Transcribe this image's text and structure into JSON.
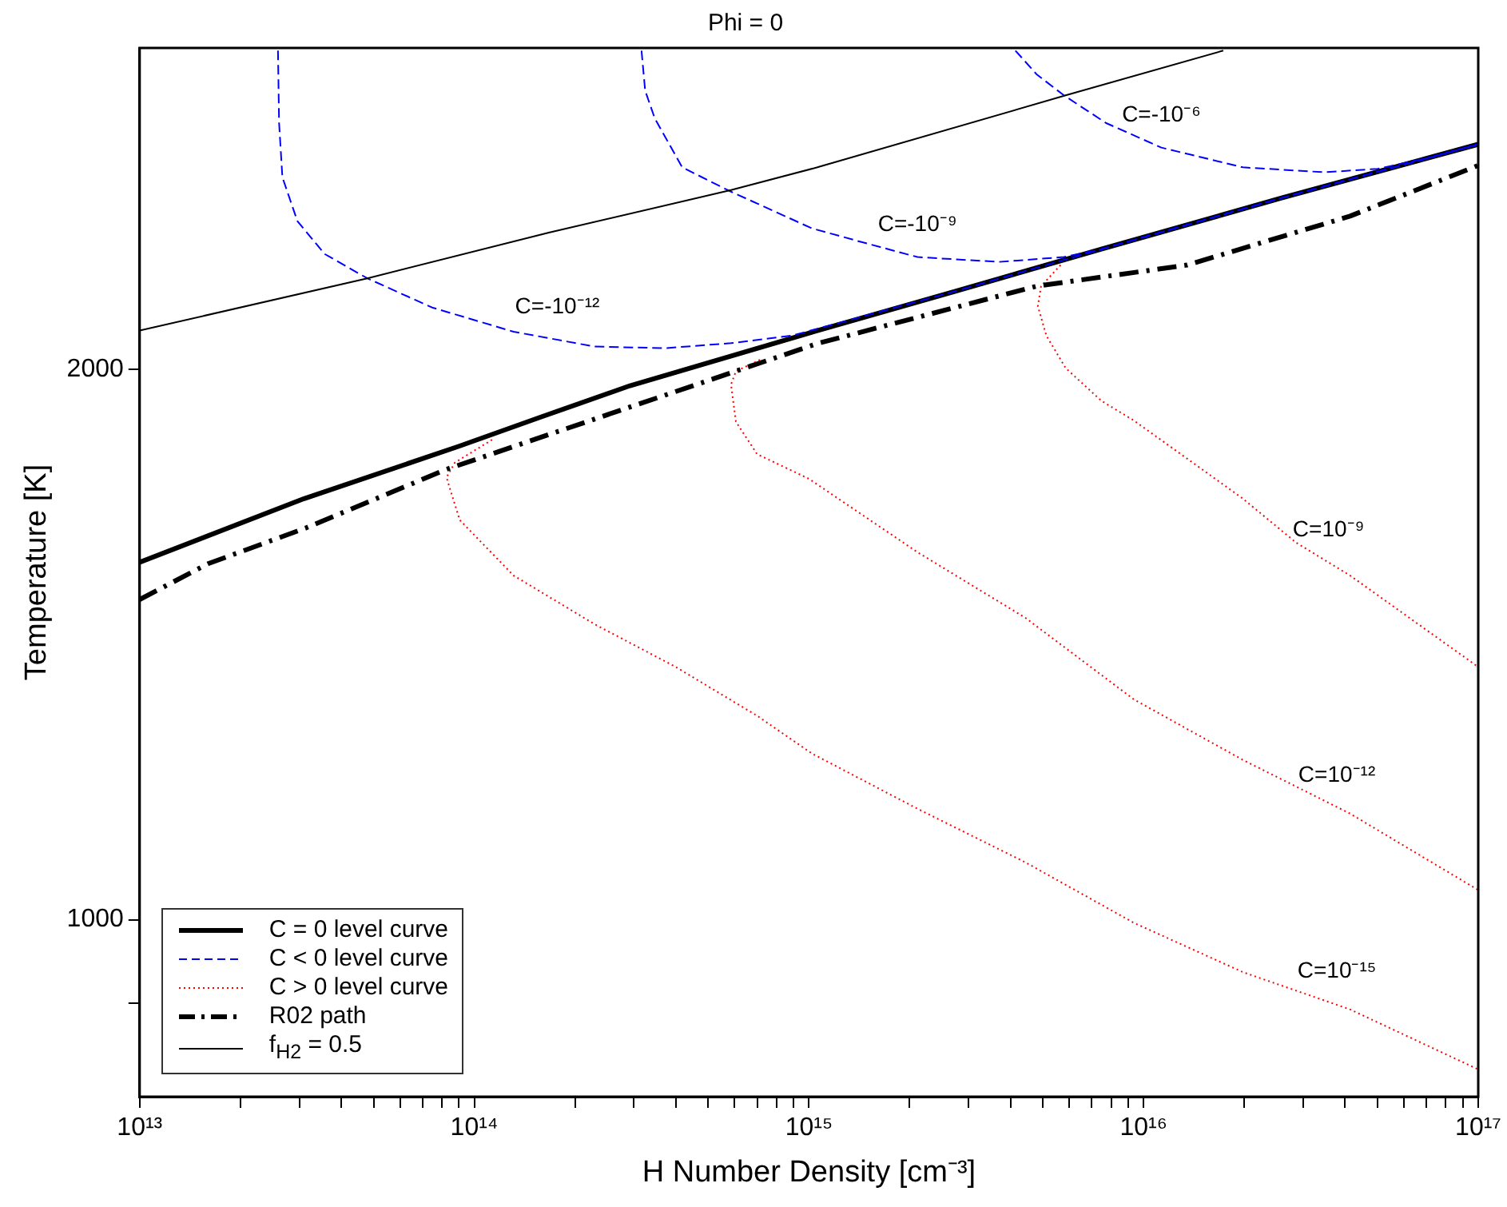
{
  "chart_data": {
    "type": "line",
    "title": "Phi = 0",
    "xlabel": "H Number Density [cm⁻³]",
    "ylabel": "Temperature [K]",
    "log": "xy",
    "grid": false,
    "legend": "bottom left",
    "marker": "none",
    "xlim": [
      10000000000000.0,
      1e+17
    ],
    "ylim": [
      800,
      3000
    ],
    "xticks": [
      {
        "value": 10000000000000.0,
        "label": "10¹³"
      },
      {
        "value": 20000000000000.0,
        "label": null
      },
      {
        "value": 30000000000000.0,
        "label": null
      },
      {
        "value": 40000000000000.0,
        "label": null
      },
      {
        "value": 50000000000000.0,
        "label": null
      },
      {
        "value": 60000000000000.0,
        "label": null
      },
      {
        "value": 70000000000000.0,
        "label": null
      },
      {
        "value": 80000000000000.0,
        "label": null
      },
      {
        "value": 90000000000000.0,
        "label": null
      },
      {
        "value": 100000000000000.0,
        "label": "10¹⁴"
      },
      {
        "value": 200000000000000.0,
        "label": null
      },
      {
        "value": 300000000000000.0,
        "label": null
      },
      {
        "value": 400000000000000.0,
        "label": null
      },
      {
        "value": 500000000000000.0,
        "label": null
      },
      {
        "value": 600000000000000.0,
        "label": null
      },
      {
        "value": 700000000000000.0,
        "label": null
      },
      {
        "value": 800000000000000.0,
        "label": null
      },
      {
        "value": 900000000000000.0,
        "label": null
      },
      {
        "value": 1000000000000000.0,
        "label": "10¹⁵"
      },
      {
        "value": 2000000000000000.0,
        "label": null
      },
      {
        "value": 3000000000000000.0,
        "label": null
      },
      {
        "value": 4000000000000000.0,
        "label": null
      },
      {
        "value": 5000000000000000.0,
        "label": null
      },
      {
        "value": 6000000000000000.0,
        "label": null
      },
      {
        "value": 7000000000000000.0,
        "label": null
      },
      {
        "value": 8000000000000000.0,
        "label": null
      },
      {
        "value": 9000000000000000.0,
        "label": null
      },
      {
        "value": 1e+16,
        "label": "10¹⁶"
      },
      {
        "value": 2e+16,
        "label": null
      },
      {
        "value": 3e+16,
        "label": null
      },
      {
        "value": 4e+16,
        "label": null
      },
      {
        "value": 5e+16,
        "label": null
      },
      {
        "value": 6e+16,
        "label": null
      },
      {
        "value": 7e+16,
        "label": null
      },
      {
        "value": 8e+16,
        "label": null
      },
      {
        "value": 9e+16,
        "label": null
      },
      {
        "value": 1e+17,
        "label": "10¹⁷"
      }
    ],
    "yticks": [
      {
        "value": 900,
        "label": null
      },
      1000,
      2000
    ],
    "series": [
      {
        "name": "C = 0 level curve",
        "color": "#000000",
        "line_style": "solid",
        "x": [
          10000000000000.0,
          31000000000000.0,
          90000000000000.0,
          158000000000000.0,
          292000000000000.0,
          1060000000000000.0,
          2740000000000000.0,
          7480000000000000.0,
          2.56e+16,
          1e+17
        ],
        "values": [
          1569,
          1700,
          1816,
          1884,
          1960,
          2101,
          2208,
          2328,
          2482,
          2657
        ]
      },
      {
        "name": "C < 0 level curve",
        "color": "#0000ff",
        "line_style": "dashed",
        "x": [
          25900000000000.0,
          26100000000000.0,
          26700000000000.0,
          29600000000000.0,
          35700000000000.0,
          47900000000000.0,
          74800000000000.0,
          131000000000000.0,
          229000000000000.0,
          374000000000000.0,
          585000000000000.0,
          893000000000000.0,
          2740000000000000.0,
          7480000000000000.0,
          2.56e+16,
          1e+17
        ],
        "values": [
          2990,
          2729,
          2549,
          2412,
          2314,
          2244,
          2163,
          2098,
          2059,
          2055,
          2068,
          2088,
          2208,
          2328,
          2482,
          2657
        ]
      },
      {
        "color": "#0000ff",
        "line_style": "dashed",
        "x": [
          316000000000000.0,
          324000000000000.0,
          346000000000000.0,
          418000000000000.0,
          585000000000000.0,
          1020000000000000.0,
          1450000000000000.0,
          2110000000000000.0,
          3700000000000000.0,
          5780000000000000.0,
          7480000000000000.0,
          2.56e+16,
          1e+17
        ],
        "values": [
          2990,
          2843,
          2746,
          2581,
          2503,
          2390,
          2348,
          2305,
          2291,
          2305,
          2328,
          2482,
          2657
        ]
      },
      {
        "color": "#0000ff",
        "line_style": "dashed",
        "x": [
          4140000000000000.0,
          4790000000000000.0,
          5780000000000000.0,
          7730000000000000.0,
          1.13e+16,
          1.98e+16,
          3.46e+16,
          5e+16,
          7.23e+16,
          1e+17
        ],
        "values": [
          2990,
          2902,
          2826,
          2729,
          2646,
          2581,
          2565,
          2576,
          2614,
          2657
        ]
      },
      {
        "name": "C > 0 level curve",
        "color": "#ff0000",
        "line_style": "dotted",
        "x": [
          113000000000000.0,
          87500000000000.0,
          82600000000000.0,
          90400000000000.0,
          131000000000000.0,
          229000000000000.0,
          400000000000000.0,
          700000000000000.0,
          1020000000000000.0,
          2110000000000000.0,
          4430000000000000.0,
          9350000000000000.0,
          1.98e+16,
          4.14e+16,
          1e+17
        ],
        "values": [
          1831,
          1779,
          1746,
          1655,
          1543,
          1451,
          1375,
          1293,
          1233,
          1150,
          1075,
          996,
          936,
          893,
          828
        ]
      },
      {
        "color": "#ff0000",
        "line_style": "dotted",
        "x": [
          714000000000000.0,
          605000000000000.0,
          585000000000000.0,
          605000000000000.0,
          700000000000000.0,
          1000000000000000.0,
          2110000000000000.0,
          4430000000000000.0,
          9350000000000000.0,
          1.98e+16,
          4.14e+16,
          1e+17
        ],
        "values": [
          2025,
          1996,
          1963,
          1873,
          1798,
          1743,
          1589,
          1463,
          1320,
          1223,
          1143,
          1038
        ]
      },
      {
        "color": "#ff0000",
        "line_style": "dotted",
        "x": [
          5650000000000000.0,
          4940000000000000.0,
          4830000000000000.0,
          5120000000000000.0,
          5850000000000000.0,
          7480000000000000.0,
          9350000000000000.0,
          1.98e+16,
          2.86e+16,
          4.14e+16,
          1e+17
        ],
        "values": [
          2282,
          2222,
          2167,
          2088,
          2004,
          1923,
          1876,
          1700,
          1608,
          1543,
          1375
        ]
      },
      {
        "name": "R02 path",
        "color": "#000000",
        "line_style": "dashdot",
        "x": [
          10000000000000.0,
          16000000000000.0,
          31300000000000.0,
          82600000000000.0,
          292000000000000.0,
          1060000000000000.0,
          4790000000000000.0,
          1.35e+16,
          4.14e+16,
          1e+17
        ],
        "values": [
          1497,
          1566,
          1638,
          1764,
          1908,
          2067,
          2222,
          2282,
          2427,
          2587
        ]
      },
      {
        "name": "f$_{H2}$ = 0.5",
        "color": "#000000",
        "line_style": "solid",
        "x": [
          10000000000000.0,
          47900000000000.0,
          167000000000000.0,
          585000000000000.0,
          1060000000000000.0,
          5850000000000000.0,
          1.73e+16
        ],
        "values": [
          2101,
          2244,
          2377,
          2508,
          2581,
          2826,
          2990
        ]
      }
    ],
    "annotations": [
      {
        "text": "C=-10⁻¹²",
        "x": 177000000000000.0,
        "y": 2078
      },
      {
        "text": "C=-10⁻⁹",
        "x": 2110000000000000.0,
        "y": 2305
      },
      {
        "text": "C=-10⁻⁶",
        "x": 1.13e+16,
        "y": 2646
      },
      {
        "text": "C=10⁻⁹",
        "x": 3.57e+16,
        "y": 1569
      },
      {
        "text": "C=10⁻¹²",
        "x": 3.78e+16,
        "y": 1152
      },
      {
        "text": "C=10⁻¹⁵",
        "x": 3.78e+16,
        "y": 900
      }
    ]
  }
}
